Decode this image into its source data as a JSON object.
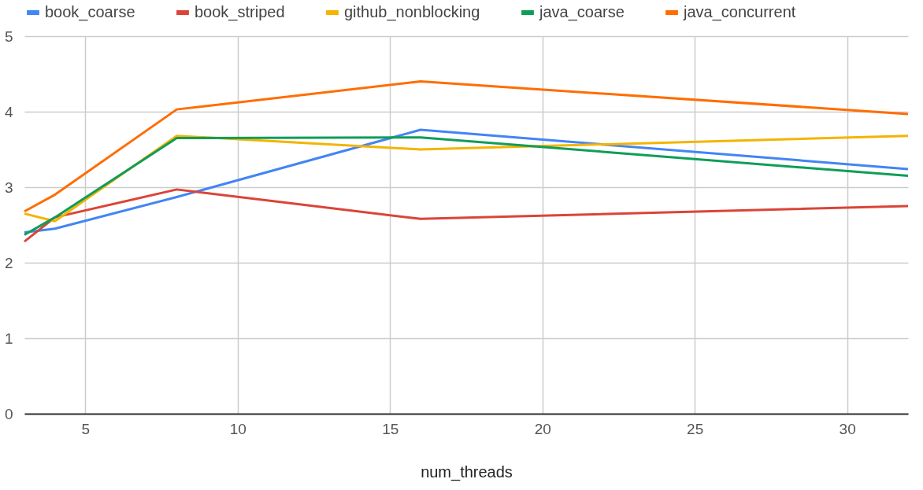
{
  "chart_data": {
    "type": "line",
    "xlabel": "num_threads",
    "x": [
      3,
      4,
      8,
      16,
      32
    ],
    "xlim": [
      3,
      32
    ],
    "xticks": [
      5,
      10,
      15,
      20,
      25,
      30
    ],
    "ylim": [
      0,
      5
    ],
    "yticks": [
      0,
      1,
      2,
      3,
      4,
      5
    ],
    "grid": true,
    "legend": "top",
    "marker": "none",
    "line_style": "solid",
    "series": [
      {
        "name": "book_coarse",
        "color": "#4285f4",
        "values": [
          2.4,
          2.45,
          2.87,
          3.76,
          3.24
        ]
      },
      {
        "name": "book_striped",
        "color": "#db4437",
        "values": [
          2.28,
          2.6,
          2.97,
          2.58,
          2.75
        ]
      },
      {
        "name": "github_nonblocking",
        "color": "#f4b400",
        "values": [
          2.65,
          2.55,
          3.68,
          3.5,
          3.68
        ]
      },
      {
        "name": "java_coarse",
        "color": "#0f9d58",
        "values": [
          2.37,
          2.6,
          3.65,
          3.66,
          3.15
        ]
      },
      {
        "name": "java_concurrent",
        "color": "#ff6d01",
        "values": [
          2.68,
          2.9,
          4.03,
          4.4,
          3.97
        ]
      }
    ]
  }
}
